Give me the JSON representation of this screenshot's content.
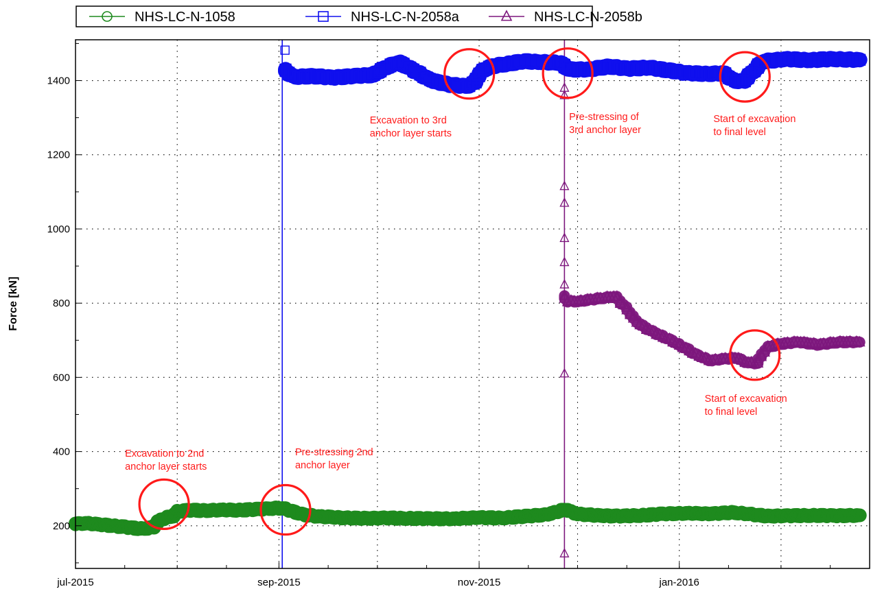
{
  "chart_data": {
    "type": "scatter",
    "title": "",
    "xlabel": "",
    "ylabel": "Force [kN]",
    "x_type": "date",
    "xlim": [
      "2015-07-01",
      "2016-02-28"
    ],
    "ylim": [
      85,
      1510
    ],
    "x_ticks": [
      {
        "date": "2015-07-01",
        "label": "jul-2015"
      },
      {
        "date": "2015-09-01",
        "label": "sep-2015"
      },
      {
        "date": "2015-11-01",
        "label": "nov-2015"
      },
      {
        "date": "2016-01-01",
        "label": "jan-2016"
      }
    ],
    "y_ticks": [
      200,
      400,
      600,
      800,
      1000,
      1200,
      1400
    ],
    "grid": true,
    "legend_position": "top",
    "series": [
      {
        "name": "NHS-LC-N-1058",
        "color": "#1e8a1e",
        "marker": "circle",
        "points": [
          [
            "2015-07-01",
            205
          ],
          [
            "2015-07-05",
            207
          ],
          [
            "2015-07-09",
            203
          ],
          [
            "2015-07-13",
            200
          ],
          [
            "2015-07-17",
            196
          ],
          [
            "2015-07-21",
            192
          ],
          [
            "2015-07-25",
            195
          ],
          [
            "2015-07-27",
            215
          ],
          [
            "2015-07-29",
            222
          ],
          [
            "2015-07-31",
            225
          ],
          [
            "2015-08-01",
            238
          ],
          [
            "2015-08-05",
            242
          ],
          [
            "2015-08-10",
            241
          ],
          [
            "2015-08-15",
            243
          ],
          [
            "2015-08-20",
            242
          ],
          [
            "2015-08-25",
            244
          ],
          [
            "2015-08-30",
            246
          ],
          [
            "2015-09-01",
            248
          ],
          [
            "2015-09-03",
            247
          ],
          [
            "2015-09-06",
            238
          ],
          [
            "2015-09-09",
            230
          ],
          [
            "2015-09-14",
            225
          ],
          [
            "2015-09-20",
            222
          ],
          [
            "2015-09-27",
            220
          ],
          [
            "2015-10-04",
            221
          ],
          [
            "2015-10-11",
            220
          ],
          [
            "2015-10-18",
            219
          ],
          [
            "2015-10-25",
            219
          ],
          [
            "2015-11-01",
            222
          ],
          [
            "2015-11-08",
            221
          ],
          [
            "2015-11-15",
            225
          ],
          [
            "2015-11-22",
            230
          ],
          [
            "2015-11-26",
            240
          ],
          [
            "2015-11-28",
            243
          ],
          [
            "2015-12-01",
            232
          ],
          [
            "2015-12-07",
            228
          ],
          [
            "2015-12-14",
            226
          ],
          [
            "2015-12-21",
            228
          ],
          [
            "2015-12-28",
            232
          ],
          [
            "2016-01-04",
            234
          ],
          [
            "2016-01-11",
            232
          ],
          [
            "2016-01-18",
            236
          ],
          [
            "2016-01-22",
            232
          ],
          [
            "2016-01-28",
            226
          ],
          [
            "2016-02-04",
            227
          ],
          [
            "2016-02-11",
            228
          ],
          [
            "2016-02-18",
            227
          ],
          [
            "2016-02-25",
            228
          ]
        ]
      },
      {
        "name": "NHS-LC-N-2058a",
        "color": "#1010ee",
        "marker": "square",
        "points": [
          [
            "2015-09-02",
            1482
          ],
          [
            "2015-09-03",
            1430
          ],
          [
            "2015-09-06",
            1410
          ],
          [
            "2015-09-12",
            1412
          ],
          [
            "2015-09-18",
            1408
          ],
          [
            "2015-09-24",
            1412
          ],
          [
            "2015-09-30",
            1415
          ],
          [
            "2015-10-04",
            1435
          ],
          [
            "2015-10-08",
            1450
          ],
          [
            "2015-10-12",
            1430
          ],
          [
            "2015-10-18",
            1400
          ],
          [
            "2015-10-24",
            1388
          ],
          [
            "2015-10-29",
            1385
          ],
          [
            "2015-10-31",
            1395
          ],
          [
            "2015-11-02",
            1425
          ],
          [
            "2015-11-05",
            1438
          ],
          [
            "2015-11-10",
            1445
          ],
          [
            "2015-11-15",
            1452
          ],
          [
            "2015-11-20",
            1450
          ],
          [
            "2015-11-26",
            1448
          ],
          [
            "2015-11-29",
            1430
          ],
          [
            "2015-12-05",
            1430
          ],
          [
            "2015-12-11",
            1438
          ],
          [
            "2015-12-17",
            1432
          ],
          [
            "2015-12-23",
            1435
          ],
          [
            "2015-12-29",
            1428
          ],
          [
            "2016-01-04",
            1420
          ],
          [
            "2016-01-10",
            1418
          ],
          [
            "2016-01-15",
            1420
          ],
          [
            "2016-01-18",
            1400
          ],
          [
            "2016-01-21",
            1398
          ],
          [
            "2016-01-24",
            1425
          ],
          [
            "2016-01-27",
            1452
          ],
          [
            "2016-02-03",
            1458
          ],
          [
            "2016-02-10",
            1455
          ],
          [
            "2016-02-17",
            1458
          ],
          [
            "2016-02-25",
            1456
          ]
        ]
      },
      {
        "name": "NHS-LC-N-2058b",
        "color": "#7d177d",
        "marker": "triangle",
        "points": [
          [
            "2015-11-27",
            125
          ],
          [
            "2015-11-27",
            610
          ],
          [
            "2015-11-27",
            1070
          ],
          [
            "2015-11-27",
            1115
          ],
          [
            "2015-11-27",
            1360
          ],
          [
            "2015-11-27",
            1380
          ],
          [
            "2015-11-27",
            975
          ],
          [
            "2015-11-27",
            910
          ],
          [
            "2015-11-27",
            850
          ],
          [
            "2015-11-27",
            820
          ],
          [
            "2015-11-28",
            805
          ],
          [
            "2015-12-02",
            805
          ],
          [
            "2015-12-06",
            810
          ],
          [
            "2015-12-10",
            815
          ],
          [
            "2015-12-13",
            818
          ],
          [
            "2015-12-16",
            790
          ],
          [
            "2015-12-20",
            745
          ],
          [
            "2015-12-25",
            720
          ],
          [
            "2015-12-30",
            700
          ],
          [
            "2016-01-03",
            680
          ],
          [
            "2016-01-07",
            660
          ],
          [
            "2016-01-11",
            645
          ],
          [
            "2016-01-15",
            650
          ],
          [
            "2016-01-19",
            652
          ],
          [
            "2016-01-22",
            640
          ],
          [
            "2016-01-25",
            638
          ],
          [
            "2016-01-28",
            680
          ],
          [
            "2016-02-01",
            690
          ],
          [
            "2016-02-07",
            695
          ],
          [
            "2016-02-13",
            688
          ],
          [
            "2016-02-19",
            695
          ],
          [
            "2016-02-25",
            695
          ]
        ]
      }
    ],
    "vertical_lines": [
      {
        "date": "2015-09-02",
        "color": "#1010ee"
      },
      {
        "date": "2015-11-27",
        "color": "#7d177d"
      }
    ],
    "annotations": [
      {
        "text": [
          "Excavation to 2nd",
          "anchor layer starts"
        ],
        "date": "2015-07-28",
        "value": 258
      },
      {
        "text": [
          "Pre-stressing 2nd",
          "anchor layer"
        ],
        "date": "2015-09-03",
        "value": 243
      },
      {
        "text": [
          "Excavation to 3rd",
          "anchor layer starts"
        ],
        "date": "2015-10-29",
        "value": 1418
      },
      {
        "text": [
          "Pre-stressing of",
          "3rd anchor layer"
        ],
        "date": "2015-11-28",
        "value": 1420
      },
      {
        "text": [
          "Start of excavation",
          "to final level"
        ],
        "date": "2016-01-21",
        "value": 1410
      },
      {
        "text": [
          "Start of excavation",
          "to final level"
        ],
        "date": "2016-01-24",
        "value": 660
      }
    ],
    "annotation_color": "#ff1a1a"
  }
}
